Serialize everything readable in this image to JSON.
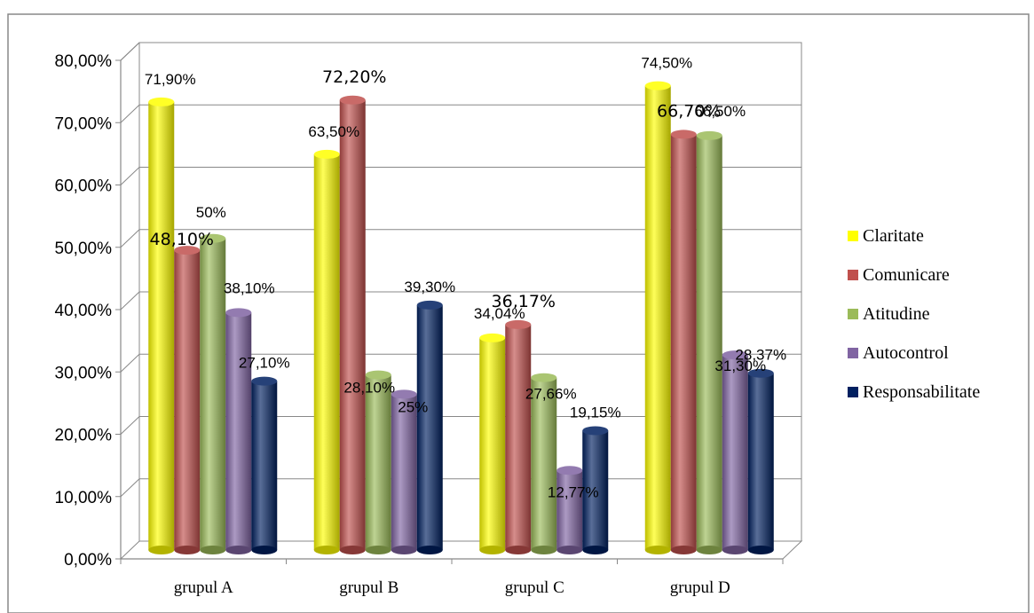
{
  "chart_data": {
    "type": "bar",
    "title": "",
    "xlabel": "",
    "ylabel": "",
    "ylim": [
      0,
      80
    ],
    "y_ticks": [
      "0,00%",
      "10,00%",
      "20,00%",
      "30,00%",
      "40,00%",
      "50,00%",
      "60,00%",
      "70,00%",
      "80,00%"
    ],
    "grid": true,
    "legend_position": "right",
    "categories": [
      "grupul A",
      "grupul B",
      "grupul C",
      "grupul D"
    ],
    "series": [
      {
        "name": "Claritate",
        "color": "#ffff00",
        "values": [
          71.9,
          63.5,
          34.04,
          74.5
        ],
        "labels": [
          "71,90%",
          "63,50%",
          "34,04%",
          "74,50%"
        ]
      },
      {
        "name": "Comunicare",
        "color": "#c0504d",
        "values": [
          48.1,
          72.2,
          36.17,
          66.7
        ],
        "labels": [
          "48,10%",
          "72,20%",
          "36,17%",
          "66,70%"
        ]
      },
      {
        "name": "Atitudine",
        "color": "#9bbb59",
        "values": [
          50,
          28.1,
          27.66,
          66.5
        ],
        "labels": [
          "50%",
          "28,10%",
          "27,66%",
          "66,50%"
        ]
      },
      {
        "name": "Autocontrol",
        "color": "#8064a2",
        "values": [
          38.1,
          25,
          12.77,
          31.3
        ],
        "labels": [
          "38,10%",
          "25%",
          "12,77%",
          "31,30%"
        ]
      },
      {
        "name": "Responsabilitate",
        "color": "#002060",
        "values": [
          27.1,
          39.3,
          19.15,
          28.37
        ],
        "labels": [
          "27,10%",
          "39,30%",
          "19,15%",
          "28,37%"
        ]
      }
    ]
  }
}
